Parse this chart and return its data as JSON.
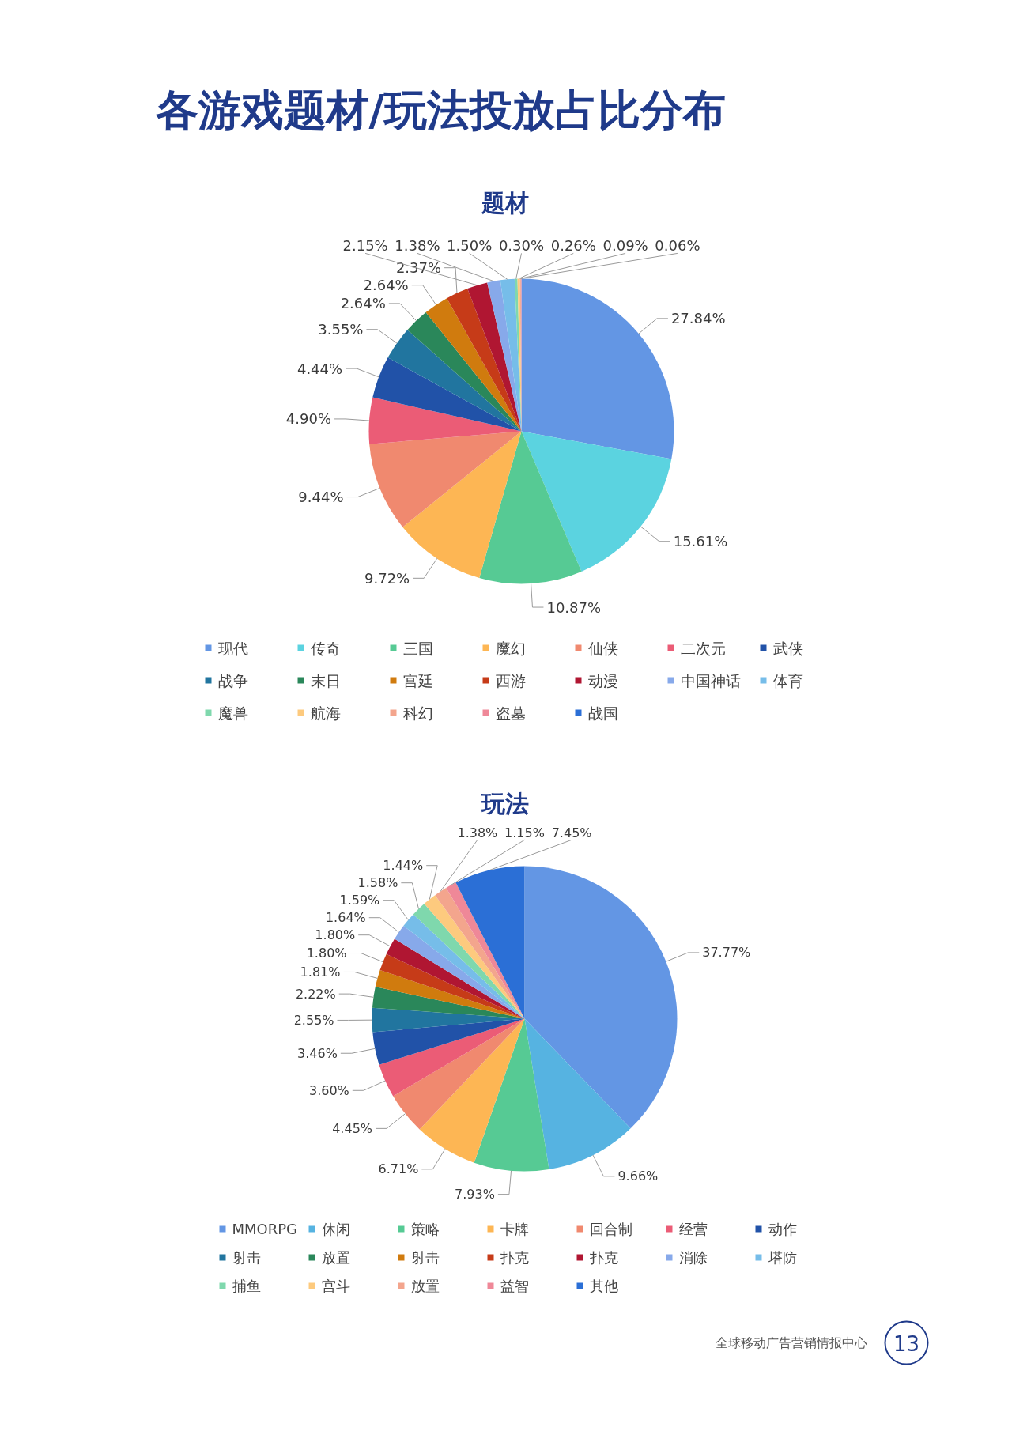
{
  "chart_data": [
    {
      "type": "pie",
      "title": "各游戏题材/玩法投放占比分布",
      "subtitle": "题材",
      "categories": [
        "现代",
        "传奇",
        "三国",
        "魔幻",
        "仙侠",
        "二次元",
        "武侠",
        "战争",
        "末日",
        "宫廷",
        "西游",
        "动漫",
        "中国神话",
        "体育",
        "魔兽",
        "航海",
        "科幻",
        "盗墓",
        "战国"
      ],
      "values": [
        27.84,
        15.61,
        10.87,
        9.72,
        9.44,
        4.9,
        4.44,
        3.55,
        2.64,
        2.64,
        2.37,
        2.15,
        1.38,
        1.5,
        0.3,
        0.26,
        0.09,
        0.06,
        null
      ],
      "value_labels": [
        "27.84%",
        "15.61%",
        "10.87%",
        "9.72%",
        "9.44%",
        "4.90%",
        "4.44%",
        "3.55%",
        "2.64%",
        "2.64%",
        "2.37%",
        "2.15%",
        "1.38%",
        "1.50%",
        "0.30%",
        "0.26%",
        "0.09%",
        "0.06%",
        null
      ],
      "colors": [
        "#6396e4",
        "#5bd3e0",
        "#56ca94",
        "#fdb654",
        "#f0896f",
        "#eb5c76",
        "#2152a8",
        "#21759f",
        "#2a875a",
        "#d07b0e",
        "#c63b18",
        "#b01632",
        "#87a9ea",
        "#76bde9",
        "#7fd8ad",
        "#fdca7e",
        "#f3a58d",
        "#ef8898",
        "#2b6fd6"
      ],
      "legend": "bottom"
    },
    {
      "type": "pie",
      "title": "玩法",
      "categories": [
        "MMORPG",
        "休闲",
        "策略",
        "卡牌",
        "回合制",
        "经营",
        "动作",
        "射击",
        "放置",
        "射击",
        "扑克",
        "扑克",
        "消除",
        "塔防",
        "捕鱼",
        "宫斗",
        "放置",
        "益智",
        "其他"
      ],
      "values": [
        37.77,
        9.66,
        7.93,
        6.71,
        4.45,
        3.6,
        3.46,
        2.55,
        2.22,
        1.81,
        1.8,
        1.8,
        1.64,
        1.59,
        1.58,
        1.44,
        1.38,
        1.15,
        7.45
      ],
      "value_labels": [
        "37.77%",
        "9.66%",
        "7.93%",
        "6.71%",
        "4.45%",
        "3.60%",
        "3.46%",
        "2.55%",
        "2.22%",
        "1.81%",
        "1.80%",
        "1.80%",
        "1.64%",
        "1.59%",
        "1.58%",
        "1.44%",
        "1.38%",
        "1.15%",
        "7.45%"
      ],
      "colors": [
        "#6396e4",
        "#56b3e1",
        "#56ca94",
        "#fdb654",
        "#f0896f",
        "#eb5c76",
        "#2152a8",
        "#21759f",
        "#2a875a",
        "#d07b0e",
        "#c63b18",
        "#b01632",
        "#87a9ea",
        "#76bde9",
        "#7fd8ad",
        "#fdca7e",
        "#f3a58d",
        "#ef8898",
        "#2b6fd6"
      ],
      "legend": "bottom",
      "annotations": [
        "全球移动广告营销情报中心",
        "13"
      ]
    }
  ]
}
